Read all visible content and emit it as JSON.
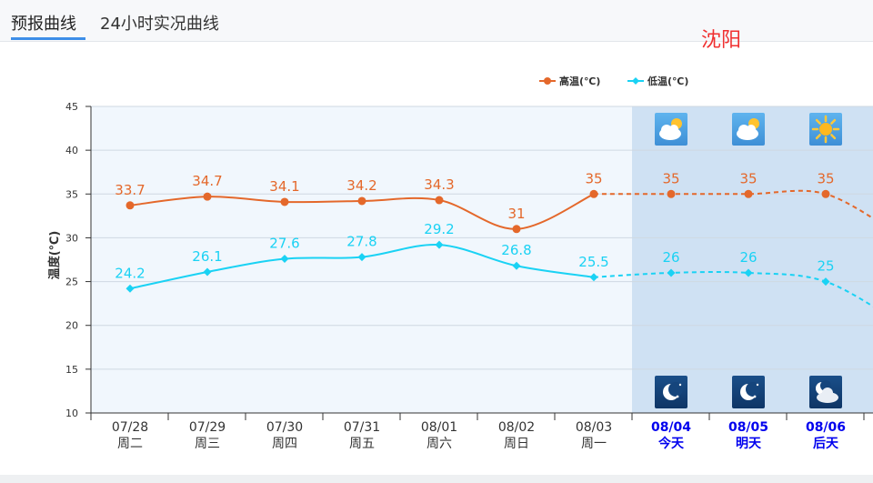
{
  "tabs": [
    {
      "label": "预报曲线",
      "active": true
    },
    {
      "label": "24小时实况曲线",
      "active": false
    }
  ],
  "city": "沈阳",
  "colors": {
    "high": "#e4682b",
    "low": "#1ad2f4",
    "future_label": "#0000ee",
    "past_label": "#333333"
  },
  "chart_data": {
    "type": "line",
    "ylabel": "温度(℃)",
    "ylim": [
      10,
      45
    ],
    "yticks": [
      "10",
      "15",
      "20",
      "25",
      "30",
      "35",
      "40",
      "45"
    ],
    "legend_position": "top-right",
    "categories": [
      {
        "date": "07/28",
        "day": "周二",
        "future": false
      },
      {
        "date": "07/29",
        "day": "周三",
        "future": false
      },
      {
        "date": "07/30",
        "day": "周四",
        "future": false
      },
      {
        "date": "07/31",
        "day": "周五",
        "future": false
      },
      {
        "date": "08/01",
        "day": "周六",
        "future": false
      },
      {
        "date": "08/02",
        "day": "周日",
        "future": false
      },
      {
        "date": "08/03",
        "day": "周一",
        "future": false
      },
      {
        "date": "08/04",
        "day": "今天",
        "future": true
      },
      {
        "date": "08/05",
        "day": "明天",
        "future": true
      },
      {
        "date": "08/06",
        "day": "后天",
        "future": true
      }
    ],
    "series": [
      {
        "name": "高温(℃)",
        "key": "high",
        "values": [
          33.7,
          34.7,
          34.1,
          34.2,
          34.3,
          31,
          35,
          35,
          35,
          35
        ],
        "labels": [
          "33.7",
          "34.7",
          "34.1",
          "34.2",
          "34.3",
          "31",
          "35",
          "35",
          "35",
          "35"
        ],
        "next_value": 30
      },
      {
        "name": "低温(℃)",
        "key": "low",
        "values": [
          24.2,
          26.1,
          27.6,
          27.8,
          29.2,
          26.8,
          25.5,
          26,
          26,
          25
        ],
        "labels": [
          "24.2",
          "26.1",
          "27.6",
          "27.8",
          "29.2",
          "26.8",
          "25.5",
          "26",
          "26",
          "25"
        ],
        "next_value": 20
      }
    ],
    "weather_icons": {
      "day": [
        "partly-cloudy-day-icon",
        "partly-cloudy-day-icon",
        "sunny-icon"
      ],
      "night": [
        "clear-night-icon",
        "clear-night-icon",
        "cloudy-night-icon"
      ]
    }
  }
}
